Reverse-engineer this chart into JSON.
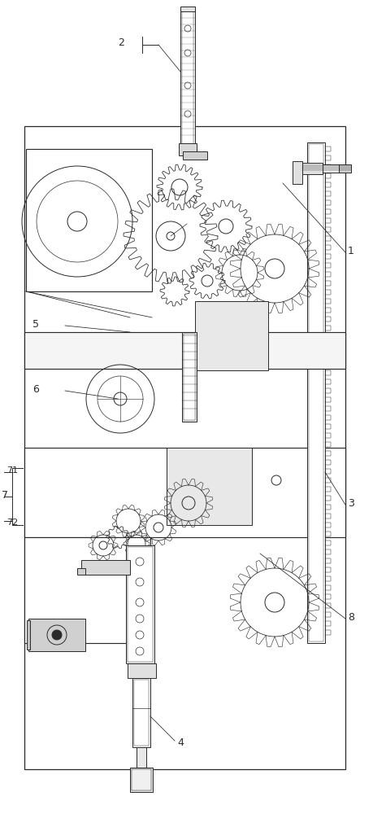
{
  "bg_color": "#ffffff",
  "lc": "#2a2a2a",
  "lw": 0.7,
  "fig_w": 4.59,
  "fig_h": 10.0
}
